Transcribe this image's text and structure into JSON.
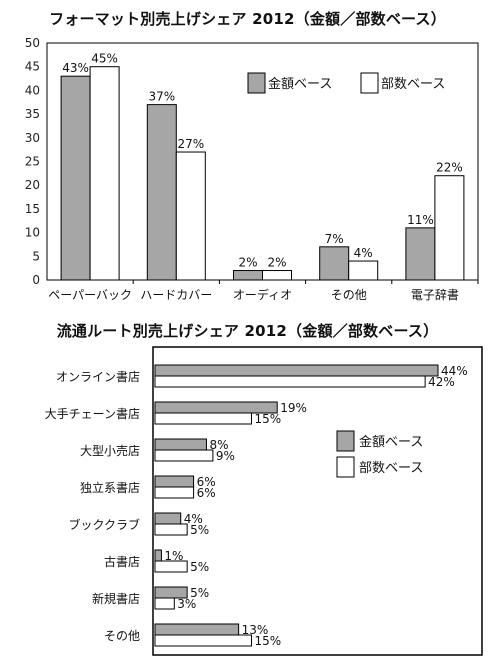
{
  "chart_data": [
    {
      "type": "bar",
      "title": "フォーマット別売上げシェア 2012（金額／部数ベース）",
      "categories": [
        "ペーパーバック",
        "ハードカバー",
        "オーディオ",
        "その他",
        "電子辞書"
      ],
      "series": [
        {
          "name": "金額ベース",
          "values": [
            43,
            37,
            2,
            7,
            11
          ],
          "labels": [
            "43%",
            "37%",
            "2%",
            "7%",
            "11%"
          ],
          "color": "#a6a6a6"
        },
        {
          "name": "部数ベース",
          "values": [
            45,
            27,
            2,
            4,
            22
          ],
          "labels": [
            "45%",
            "27%",
            "2%",
            "4%",
            "22%"
          ],
          "color": "#ffffff"
        }
      ],
      "yticks": [
        "0",
        "5",
        "10",
        "15",
        "20",
        "25",
        "30",
        "35",
        "40",
        "45",
        "50"
      ],
      "ylim": [
        0,
        50
      ],
      "grid": false,
      "legend_position": "top-right"
    },
    {
      "type": "bar",
      "orientation": "horizontal",
      "title": "流通ルート別売上げシェア 2012（金額／部数ベース）",
      "categories": [
        "オンライン書店",
        "大手チェーン書店",
        "大型小売店",
        "独立系書店",
        "ブッククラブ",
        "古書店",
        "新規書店",
        "その他"
      ],
      "series": [
        {
          "name": "金額ベース",
          "values": [
            44,
            19,
            8,
            6,
            4,
            1,
            5,
            13
          ],
          "labels": [
            "44%",
            "19%",
            "8%",
            "6%",
            "4%",
            "1%",
            "5%",
            "13%"
          ],
          "color": "#a6a6a6"
        },
        {
          "name": "部数ベース",
          "values": [
            42,
            15,
            9,
            6,
            5,
            5,
            3,
            15
          ],
          "labels": [
            "42%",
            "15%",
            "9%",
            "6%",
            "5%",
            "5%",
            "3%",
            "15%"
          ],
          "color": "#ffffff"
        }
      ],
      "xlim": [
        0,
        44
      ],
      "grid": false,
      "legend_position": "center-right"
    }
  ]
}
